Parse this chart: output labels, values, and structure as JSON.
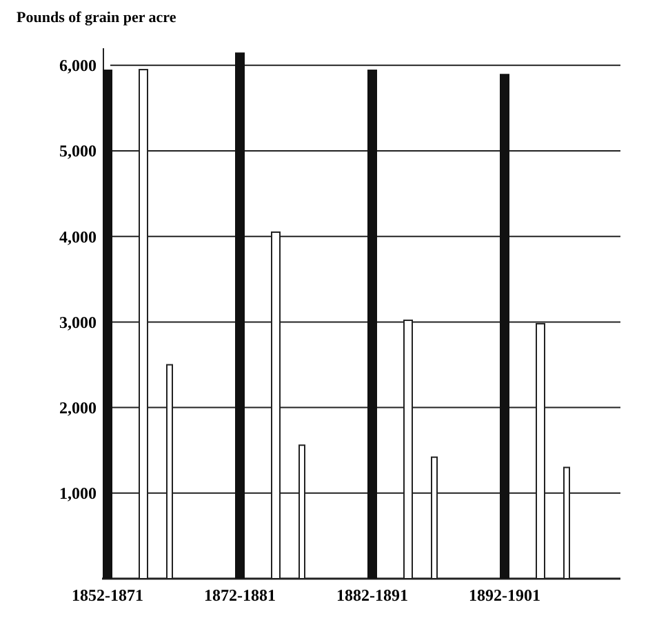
{
  "chart_data": {
    "type": "bar",
    "ylabel": "Pounds of grain per acre",
    "categories": [
      "1852-1871",
      "1872-1881",
      "1882-1891",
      "1892-1901"
    ],
    "series": [
      {
        "color": "#111111",
        "values": [
          5950,
          6150,
          5950,
          5900
        ]
      },
      {
        "color": "#ffffff",
        "values": [
          5950,
          4050,
          3020,
          2980
        ]
      },
      {
        "color": "#ffffff",
        "values": [
          2500,
          1560,
          1420,
          1300
        ]
      }
    ],
    "ylim": [
      0,
      6200
    ],
    "yticks": [
      {
        "value": 1000,
        "label": "1,000"
      },
      {
        "value": 2000,
        "label": "2,000"
      },
      {
        "value": 3000,
        "label": "3,000"
      },
      {
        "value": 4000,
        "label": "4,000"
      },
      {
        "value": 5000,
        "label": "5,000"
      },
      {
        "value": 6000,
        "label": "6,000"
      }
    ],
    "grid": "y"
  }
}
